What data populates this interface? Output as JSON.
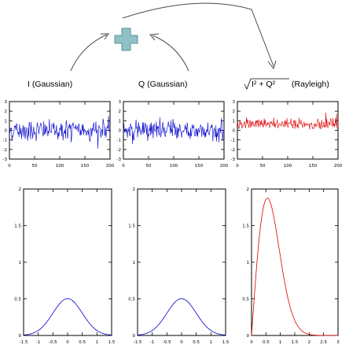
{
  "labels": {
    "i": "I (Gaussian)",
    "q": "Q (Gaussian)",
    "mag_formula": "I² + Q²",
    "mag_dist": "(Rayleigh)"
  },
  "icons": {
    "combine": "plus-icon"
  },
  "colors": {
    "blue": "#0000cc",
    "red": "#dd0000",
    "plus": "#8fc1c6"
  },
  "time_yticks": [
    "3",
    "2",
    "1",
    "0",
    "-1",
    "-2",
    "-3"
  ],
  "time_xticks": [
    "0",
    "50",
    "100",
    "150",
    "200"
  ],
  "hist_yticks": [
    "2",
    "1.5",
    "1",
    "0.5",
    "0"
  ],
  "gauss_xticks": [
    "-1.5",
    "-1",
    "-0.5",
    "0",
    "0.5",
    "1",
    "1.5"
  ],
  "rayleigh_xticks": [
    "0",
    "0.5",
    "1",
    "1.5",
    "2",
    "2.5",
    "3"
  ]
}
